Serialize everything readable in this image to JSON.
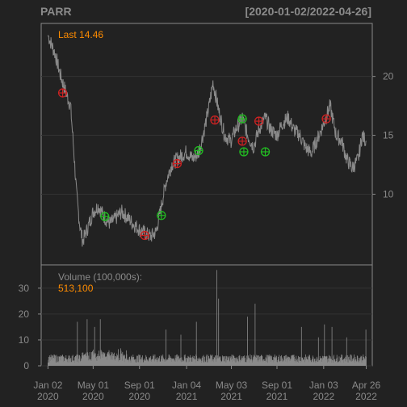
{
  "header": {
    "symbol": "PARR",
    "range": "[2020-01-02/2022-04-26]"
  },
  "colors": {
    "background": "#222222",
    "panel_border": "#8a8a8a",
    "grid": "#333333",
    "price_line": "#8a8a8a",
    "axis_text": "#8a8a8a",
    "highlight": "#ff8c00",
    "buy_marker": "#22bb22",
    "sell_marker": "#cc2222"
  },
  "chart_data": [
    {
      "type": "line",
      "panel": "price",
      "series": [
        {
          "x": [
            "2020-01-02",
            "2020-01-20",
            "2020-02-05",
            "2020-02-20",
            "2020-03-02",
            "2020-03-10",
            "2020-03-18",
            "2020-03-26",
            "2020-04-03",
            "2020-04-15",
            "2020-05-01",
            "2020-05-15",
            "2020-06-01",
            "2020-06-15",
            "2020-07-01",
            "2020-07-15",
            "2020-08-01",
            "2020-08-15",
            "2020-09-01",
            "2020-09-15",
            "2020-10-01",
            "2020-10-15",
            "2020-10-29",
            "2020-11-10",
            "2020-11-25",
            "2020-12-10",
            "2021-01-04",
            "2021-01-20",
            "2021-02-05",
            "2021-02-20",
            "2021-03-05",
            "2021-03-15",
            "2021-03-31",
            "2021-04-15",
            "2021-05-01",
            "2021-05-15",
            "2021-06-01",
            "2021-06-15",
            "2021-07-01",
            "2021-07-15",
            "2021-08-01",
            "2021-08-15",
            "2021-09-01",
            "2021-09-15",
            "2021-10-01",
            "2021-10-15",
            "2021-11-01",
            "2021-11-15",
            "2021-12-01",
            "2021-12-15",
            "2022-01-03",
            "2022-01-20",
            "2022-02-05",
            "2022-02-20",
            "2022-03-05",
            "2022-03-20",
            "2022-04-05",
            "2022-04-15",
            "2022-04-26"
          ],
          "y": [
            23.5,
            22.0,
            20.0,
            18.5,
            17.5,
            14.0,
            10.0,
            7.5,
            6.0,
            7.0,
            8.5,
            9.0,
            8.0,
            7.5,
            8.0,
            8.5,
            8.0,
            7.5,
            7.0,
            6.7,
            6.4,
            6.8,
            9.0,
            11.0,
            12.5,
            13.0,
            13.6,
            13.0,
            13.5,
            15.5,
            17.5,
            19.5,
            17.0,
            15.0,
            14.5,
            15.5,
            16.5,
            15.0,
            14.0,
            15.5,
            16.5,
            15.5,
            15.0,
            16.0,
            16.5,
            15.5,
            15.0,
            14.0,
            13.5,
            14.5,
            16.0,
            17.5,
            15.0,
            14.5,
            13.0,
            12.2,
            13.0,
            15.0,
            14.46
          ]
        }
      ],
      "signals": {
        "buy": [
          {
            "x": "2020-06-01",
            "y": 8.1
          },
          {
            "x": "2020-10-29",
            "y": 8.2
          },
          {
            "x": "2021-02-05",
            "y": 13.7
          },
          {
            "x": "2021-06-01",
            "y": 16.4
          },
          {
            "x": "2021-06-05",
            "y": 13.6
          },
          {
            "x": "2021-08-01",
            "y": 13.6
          }
        ],
        "sell": [
          {
            "x": "2020-02-10",
            "y": 18.6
          },
          {
            "x": "2020-09-15",
            "y": 6.5
          },
          {
            "x": "2020-12-10",
            "y": 12.6
          },
          {
            "x": "2021-03-20",
            "y": 16.3
          },
          {
            "x": "2021-06-01",
            "y": 14.5
          },
          {
            "x": "2021-07-15",
            "y": 16.2
          },
          {
            "x": "2022-01-10",
            "y": 16.4
          }
        ]
      },
      "last_label": "Last 14.46",
      "yticks": [
        10,
        15,
        20
      ],
      "ylim": [
        4,
        24.5
      ],
      "xlim": [
        "2019-12-15",
        "2022-05-12"
      ],
      "grid": true,
      "y_axis_side": "right"
    },
    {
      "type": "bar",
      "panel": "volume",
      "title": "Volume (100,000s):",
      "last_value": "513,100",
      "spikes": [
        {
          "x": "2020-03-20",
          "value": 17
        },
        {
          "x": "2020-04-15",
          "value": 18
        },
        {
          "x": "2020-05-05",
          "value": 15
        },
        {
          "x": "2020-05-20",
          "value": 18
        },
        {
          "x": "2020-11-10",
          "value": 14
        },
        {
          "x": "2020-12-20",
          "value": 12
        },
        {
          "x": "2021-01-30",
          "value": 17
        },
        {
          "x": "2021-03-25",
          "value": 37
        },
        {
          "x": "2021-03-30",
          "value": 26
        },
        {
          "x": "2021-06-15",
          "value": 19
        },
        {
          "x": "2021-07-05",
          "value": 24
        },
        {
          "x": "2021-11-05",
          "value": 15
        },
        {
          "x": "2021-12-20",
          "value": 11
        },
        {
          "x": "2022-01-05",
          "value": 16
        },
        {
          "x": "2022-01-25",
          "value": 15
        },
        {
          "x": "2022-03-05",
          "value": 11
        },
        {
          "x": "2022-04-25",
          "value": 14
        }
      ],
      "yticks": [
        0,
        10,
        20,
        30
      ],
      "ylim": [
        0,
        39
      ],
      "y_axis_side": "left"
    }
  ],
  "x_axis": {
    "ticks": [
      {
        "date": "2020-01-02",
        "line1": "Jan 02",
        "line2": "2020"
      },
      {
        "date": "2020-05-01",
        "line1": "May 01",
        "line2": "2020"
      },
      {
        "date": "2020-09-01",
        "line1": "Sep 01",
        "line2": "2020"
      },
      {
        "date": "2021-01-04",
        "line1": "Jan 04",
        "line2": "2021"
      },
      {
        "date": "2021-05-03",
        "line1": "May 03",
        "line2": "2021"
      },
      {
        "date": "2021-09-01",
        "line1": "Sep 01",
        "line2": "2021"
      },
      {
        "date": "2022-01-03",
        "line1": "Jan 03",
        "line2": "2022"
      },
      {
        "date": "2022-04-26",
        "line1": "Apr 26",
        "line2": "2022"
      }
    ]
  }
}
